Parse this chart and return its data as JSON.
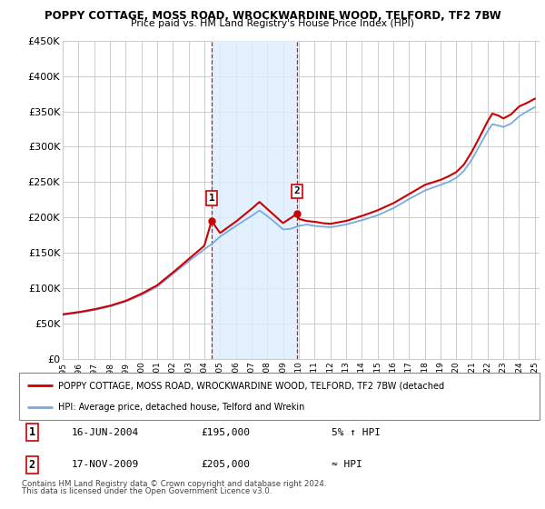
{
  "title1": "POPPY COTTAGE, MOSS ROAD, WROCKWARDINE WOOD, TELFORD, TF2 7BW",
  "title2": "Price paid vs. HM Land Registry's House Price Index (HPI)",
  "ylim": [
    0,
    450000
  ],
  "yticks": [
    0,
    50000,
    100000,
    150000,
    200000,
    250000,
    300000,
    350000,
    400000,
    450000
  ],
  "ytick_labels": [
    "£0",
    "£50K",
    "£100K",
    "£150K",
    "£200K",
    "£250K",
    "£300K",
    "£350K",
    "£400K",
    "£450K"
  ],
  "grid_color": "#cccccc",
  "sale1_year": 2004.46,
  "sale1_price": 195000,
  "sale2_year": 2009.88,
  "sale2_price": 205000,
  "sale1_date": "16-JUN-2004",
  "sale1_price_str": "£195,000",
  "sale1_hpi_rel": "5% ↑ HPI",
  "sale2_date": "17-NOV-2009",
  "sale2_price_str": "£205,000",
  "sale2_hpi_rel": "≈ HPI",
  "shade_color": "#ddeeff",
  "vline_color": "#cc0000",
  "legend_label1": "POPPY COTTAGE, MOSS ROAD, WROCKWARDINE WOOD, TELFORD, TF2 7BW (detached",
  "legend_label2": "HPI: Average price, detached house, Telford and Wrekin",
  "footnote1": "Contains HM Land Registry data © Crown copyright and database right 2024.",
  "footnote2": "This data is licensed under the Open Government Licence v3.0.",
  "hpi_color": "#7aaadd",
  "price_color": "#cc0000",
  "hpi_anchors_x": [
    1995,
    1996,
    1997,
    1998,
    1999,
    2000,
    2001,
    2002,
    2003,
    2004,
    2004.5,
    2005,
    2006,
    2007,
    2007.5,
    2008,
    2008.5,
    2009,
    2009.5,
    2010,
    2010.5,
    2011,
    2011.5,
    2012,
    2013,
    2014,
    2015,
    2016,
    2017,
    2018,
    2019,
    2019.5,
    2020,
    2020.5,
    2021,
    2021.5,
    2022,
    2022.3,
    2022.7,
    2023,
    2023.5,
    2024,
    2024.5,
    2025
  ],
  "hpi_anchors_y": [
    62000,
    65000,
    69000,
    74000,
    81000,
    90000,
    102000,
    120000,
    138000,
    155000,
    163000,
    173000,
    188000,
    202000,
    210000,
    202000,
    193000,
    183000,
    184000,
    188000,
    190000,
    188000,
    187000,
    186000,
    190000,
    196000,
    203000,
    213000,
    226000,
    238000,
    246000,
    250000,
    256000,
    266000,
    282000,
    302000,
    322000,
    332000,
    330000,
    328000,
    333000,
    343000,
    350000,
    356000
  ],
  "price_anchors_x": [
    1995,
    1996,
    1997,
    1998,
    1999,
    2000,
    2001,
    2002,
    2003,
    2004,
    2004.46,
    2005,
    2006,
    2007,
    2007.5,
    2008,
    2008.5,
    2009,
    2009.88,
    2010,
    2010.5,
    2011,
    2011.5,
    2012,
    2013,
    2014,
    2015,
    2016,
    2017,
    2018,
    2019,
    2019.5,
    2020,
    2020.5,
    2021,
    2021.5,
    2022,
    2022.3,
    2022.7,
    2023,
    2023.5,
    2024,
    2024.5,
    2025
  ],
  "price_anchors_y": [
    63000,
    66000,
    70000,
    75000,
    82000,
    92000,
    104000,
    122000,
    141000,
    160000,
    195000,
    178000,
    194000,
    212000,
    222000,
    212000,
    202000,
    192000,
    205000,
    198000,
    195000,
    194000,
    192000,
    191000,
    195000,
    202000,
    210000,
    220000,
    233000,
    246000,
    253000,
    258000,
    264000,
    275000,
    293000,
    314000,
    336000,
    347000,
    344000,
    340000,
    346000,
    357000,
    362000,
    368000
  ]
}
